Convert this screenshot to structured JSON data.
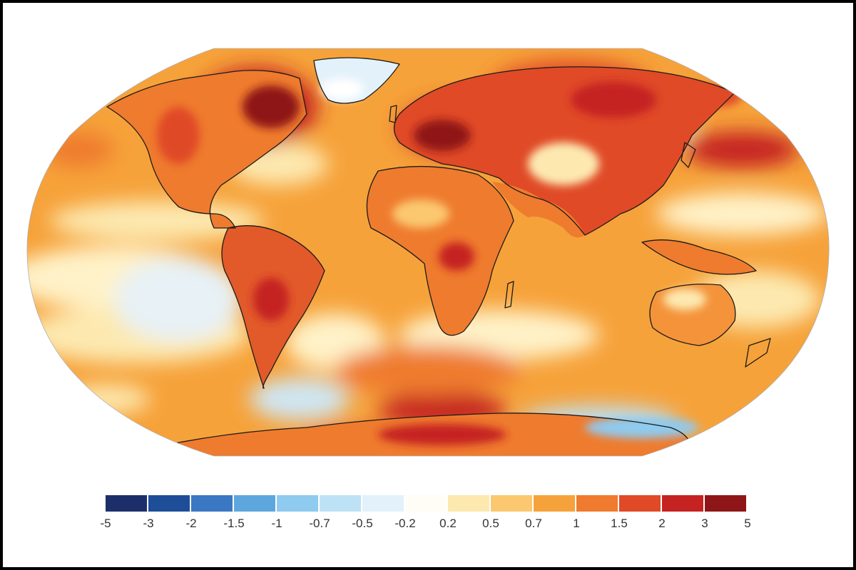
{
  "map": {
    "projection": "equal-earth",
    "variable": "temperature anomaly",
    "colors": {
      "coastline": "#1a1a1a",
      "ocean_base": "#f6a23a"
    }
  },
  "legend": {
    "swatches": [
      "#1d2f6b",
      "#1f4e99",
      "#3a78c3",
      "#5ea7de",
      "#8fcaef",
      "#bee2f5",
      "#e2f1fa",
      "#fffdf6",
      "#fde9b0",
      "#fbc870",
      "#f6a23a",
      "#ef7b2e",
      "#e04a27",
      "#c52222",
      "#8f1618"
    ],
    "labels": [
      "-5",
      "-3",
      "-2",
      "-1.5",
      "-1",
      "-0.7",
      "-0.5",
      "-0.2",
      "0.2",
      "0.5",
      "0.7",
      "1",
      "1.5",
      "2",
      "3",
      "5"
    ]
  }
}
